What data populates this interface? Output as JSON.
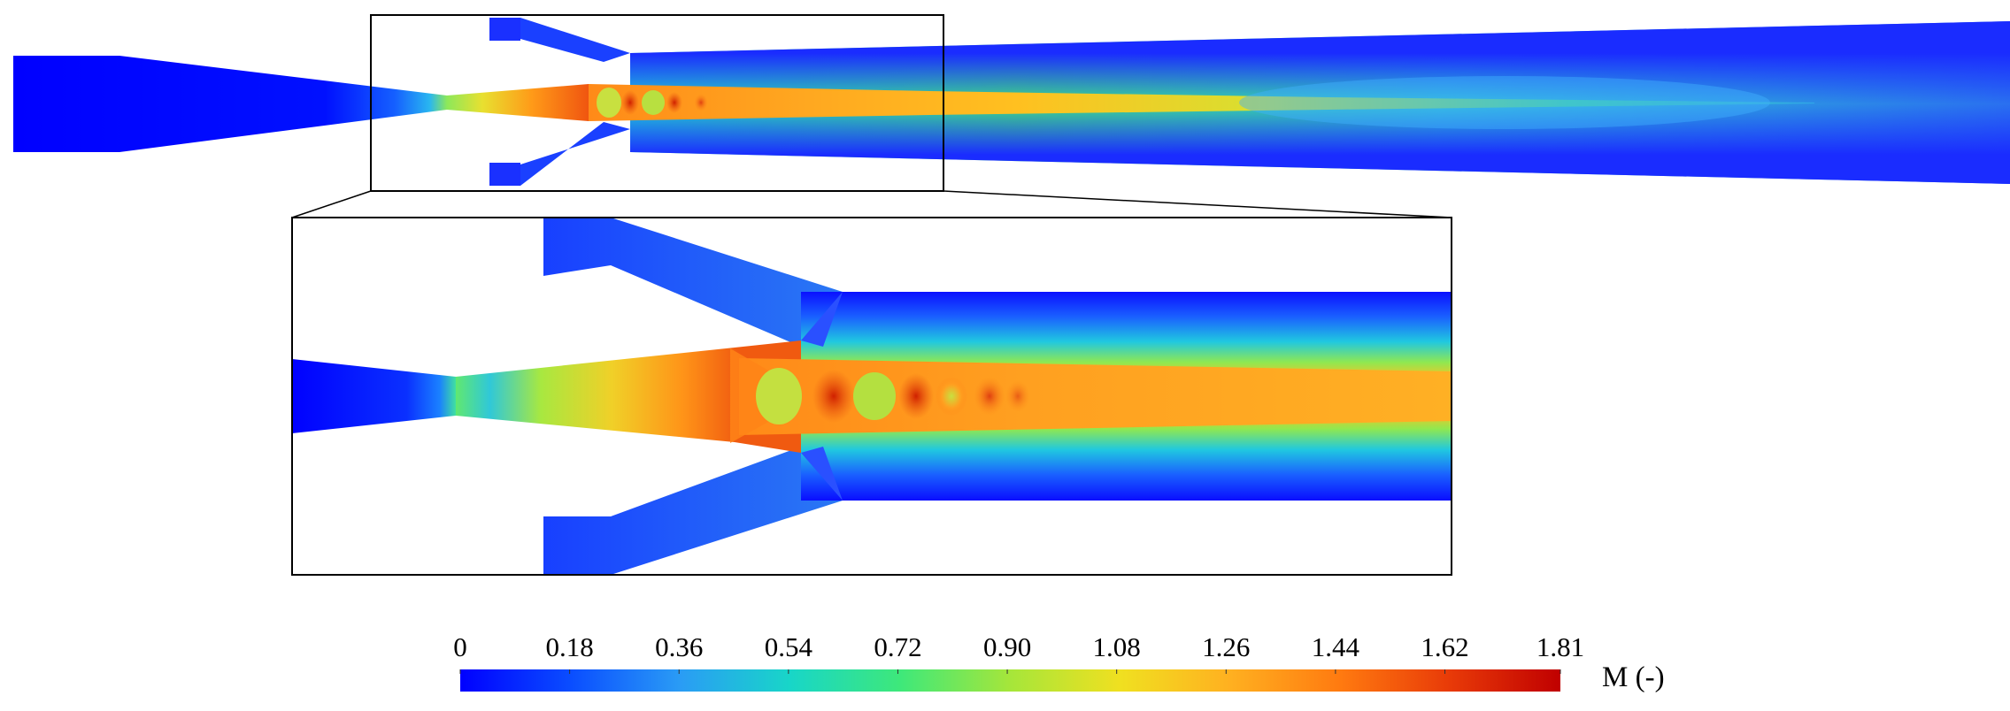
{
  "colorbar": {
    "quantity_label": "M (-)",
    "min": 0,
    "max": 1.81,
    "tick_labels": [
      "0",
      "0.18",
      "0.36",
      "0.54",
      "0.72",
      "0.90",
      "1.08",
      "1.26",
      "1.44",
      "1.62",
      "1.81"
    ],
    "tick_values": [
      0,
      0.18,
      0.36,
      0.54,
      0.72,
      0.9,
      1.08,
      1.26,
      1.44,
      1.62,
      1.81
    ],
    "colormap_stops": [
      "#0000ff",
      "#0a4dff",
      "#2a9cf5",
      "#18d6c8",
      "#3ee87a",
      "#a6e63a",
      "#f0e020",
      "#ffb020",
      "#ff7a10",
      "#e83a08",
      "#c00000"
    ]
  },
  "views": [
    "full-ejector-domain",
    "zoomed-nozzle-mixing-region"
  ],
  "colors": {
    "subsonic": "#1a3cff",
    "transonic": "#3ee87a",
    "supersonic": "#ff7a10",
    "peak": "#cc1a00",
    "outline": "#000000"
  }
}
